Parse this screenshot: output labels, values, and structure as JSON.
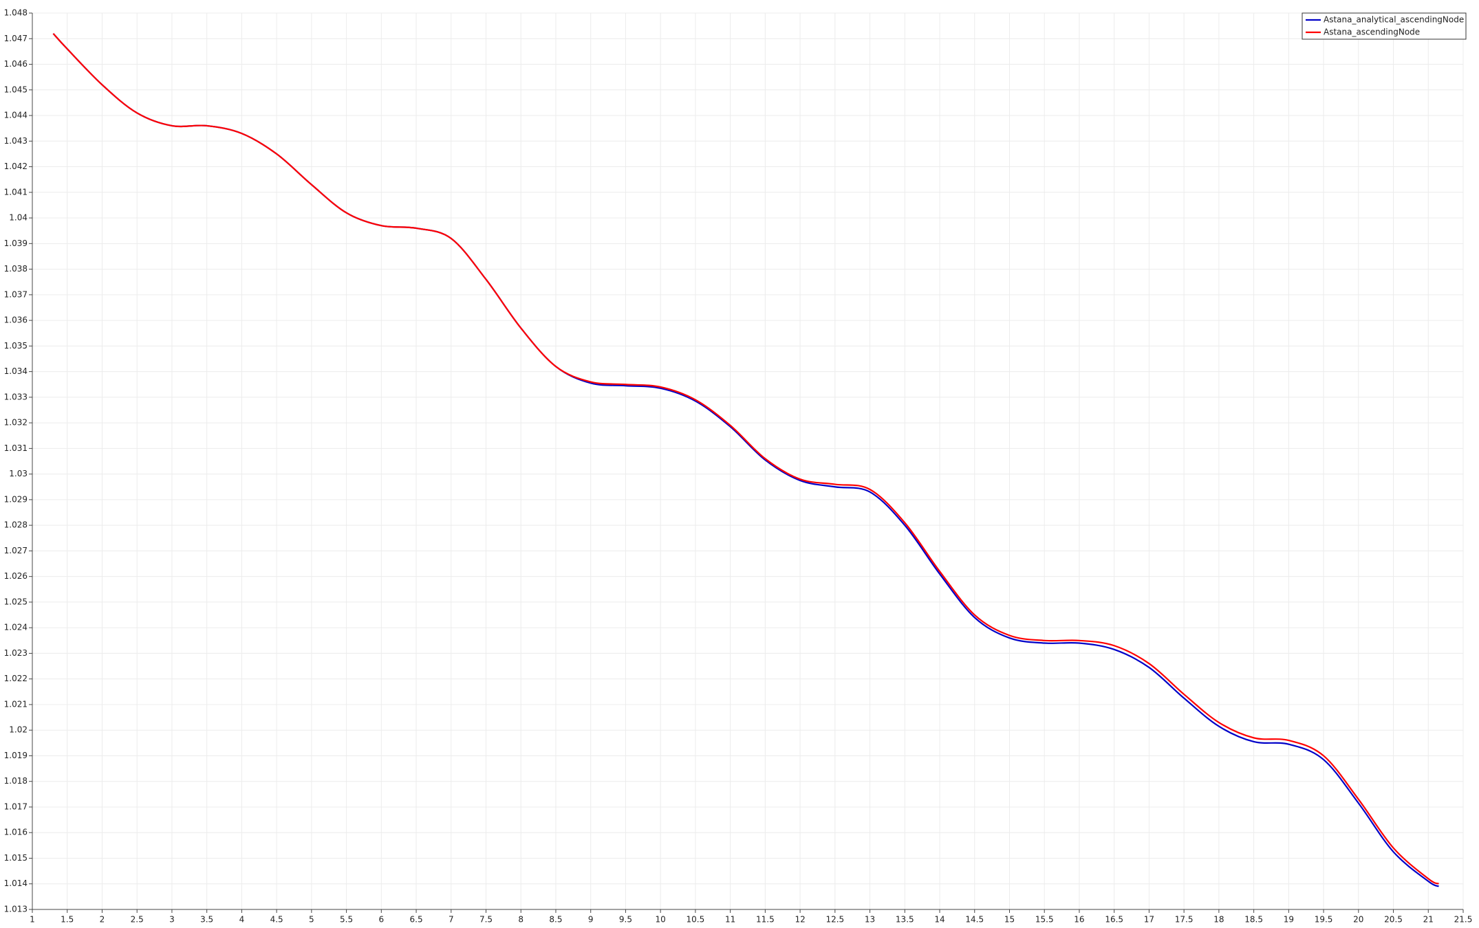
{
  "chart_data": {
    "type": "line",
    "x": [
      1.3,
      1.5,
      2,
      2.5,
      3,
      3.5,
      4,
      4.5,
      5,
      5.5,
      6,
      6.5,
      7,
      7.5,
      8,
      8.5,
      9,
      9.5,
      10,
      10.5,
      11,
      11.5,
      12,
      12.5,
      13,
      13.5,
      14,
      14.5,
      15,
      15.5,
      16,
      16.5,
      17,
      17.5,
      18,
      18.5,
      19,
      19.5,
      20,
      20.5,
      21,
      21.15
    ],
    "series": [
      {
        "name": "Astana_analytical_ascendingNode",
        "color": "#0000c8",
        "values": [
          1.0472,
          1.0466,
          1.0452,
          1.0441,
          1.0436,
          1.0436,
          1.0433,
          1.0425,
          1.0413,
          1.0402,
          1.0397,
          1.0396,
          1.0392,
          1.0376,
          1.0357,
          1.0342,
          1.03355,
          1.03345,
          1.03335,
          1.03285,
          1.03185,
          1.03055,
          1.02975,
          1.0295,
          1.0293,
          1.028,
          1.0261,
          1.0244,
          1.0236,
          1.0234,
          1.0234,
          1.02315,
          1.02245,
          1.02125,
          1.02015,
          1.01955,
          1.01945,
          1.01885,
          1.01715,
          1.01525,
          1.0141,
          1.0139
        ]
      },
      {
        "name": "Astana_ascendingNode",
        "color": "#ff0000",
        "values": [
          1.0472,
          1.0466,
          1.0452,
          1.0441,
          1.0436,
          1.0436,
          1.0433,
          1.0425,
          1.0413,
          1.0402,
          1.0397,
          1.0396,
          1.0392,
          1.0376,
          1.0357,
          1.0342,
          1.0336,
          1.0335,
          1.0334,
          1.0329,
          1.0319,
          1.0306,
          1.0298,
          1.0296,
          1.0294,
          1.0281,
          1.0262,
          1.0245,
          1.0237,
          1.0235,
          1.0235,
          1.0233,
          1.0226,
          1.0214,
          1.0203,
          1.0197,
          1.0196,
          1.019,
          1.0173,
          1.0154,
          1.0142,
          1.014
        ]
      }
    ],
    "xlim": [
      1,
      21.5
    ],
    "xticks": [
      1,
      1.5,
      2,
      2.5,
      3,
      3.5,
      4,
      4.5,
      5,
      5.5,
      6,
      6.5,
      7,
      7.5,
      8,
      8.5,
      9,
      9.5,
      10,
      10.5,
      11,
      11.5,
      12,
      12.5,
      13,
      13.5,
      14,
      14.5,
      15,
      15.5,
      16,
      16.5,
      17,
      17.5,
      18,
      18.5,
      19,
      19.5,
      20,
      20.5,
      21,
      21.5
    ],
    "ylim": [
      1.013,
      1.048
    ],
    "yticks": [
      1.013,
      1.014,
      1.015,
      1.016,
      1.017,
      1.018,
      1.019,
      1.02,
      1.021,
      1.022,
      1.023,
      1.024,
      1.025,
      1.026,
      1.027,
      1.028,
      1.029,
      1.03,
      1.031,
      1.032,
      1.033,
      1.034,
      1.035,
      1.036,
      1.037,
      1.038,
      1.039,
      1.04,
      1.041,
      1.042,
      1.043,
      1.044,
      1.045,
      1.046,
      1.047,
      1.048
    ],
    "grid": true,
    "legend": "upper right"
  }
}
